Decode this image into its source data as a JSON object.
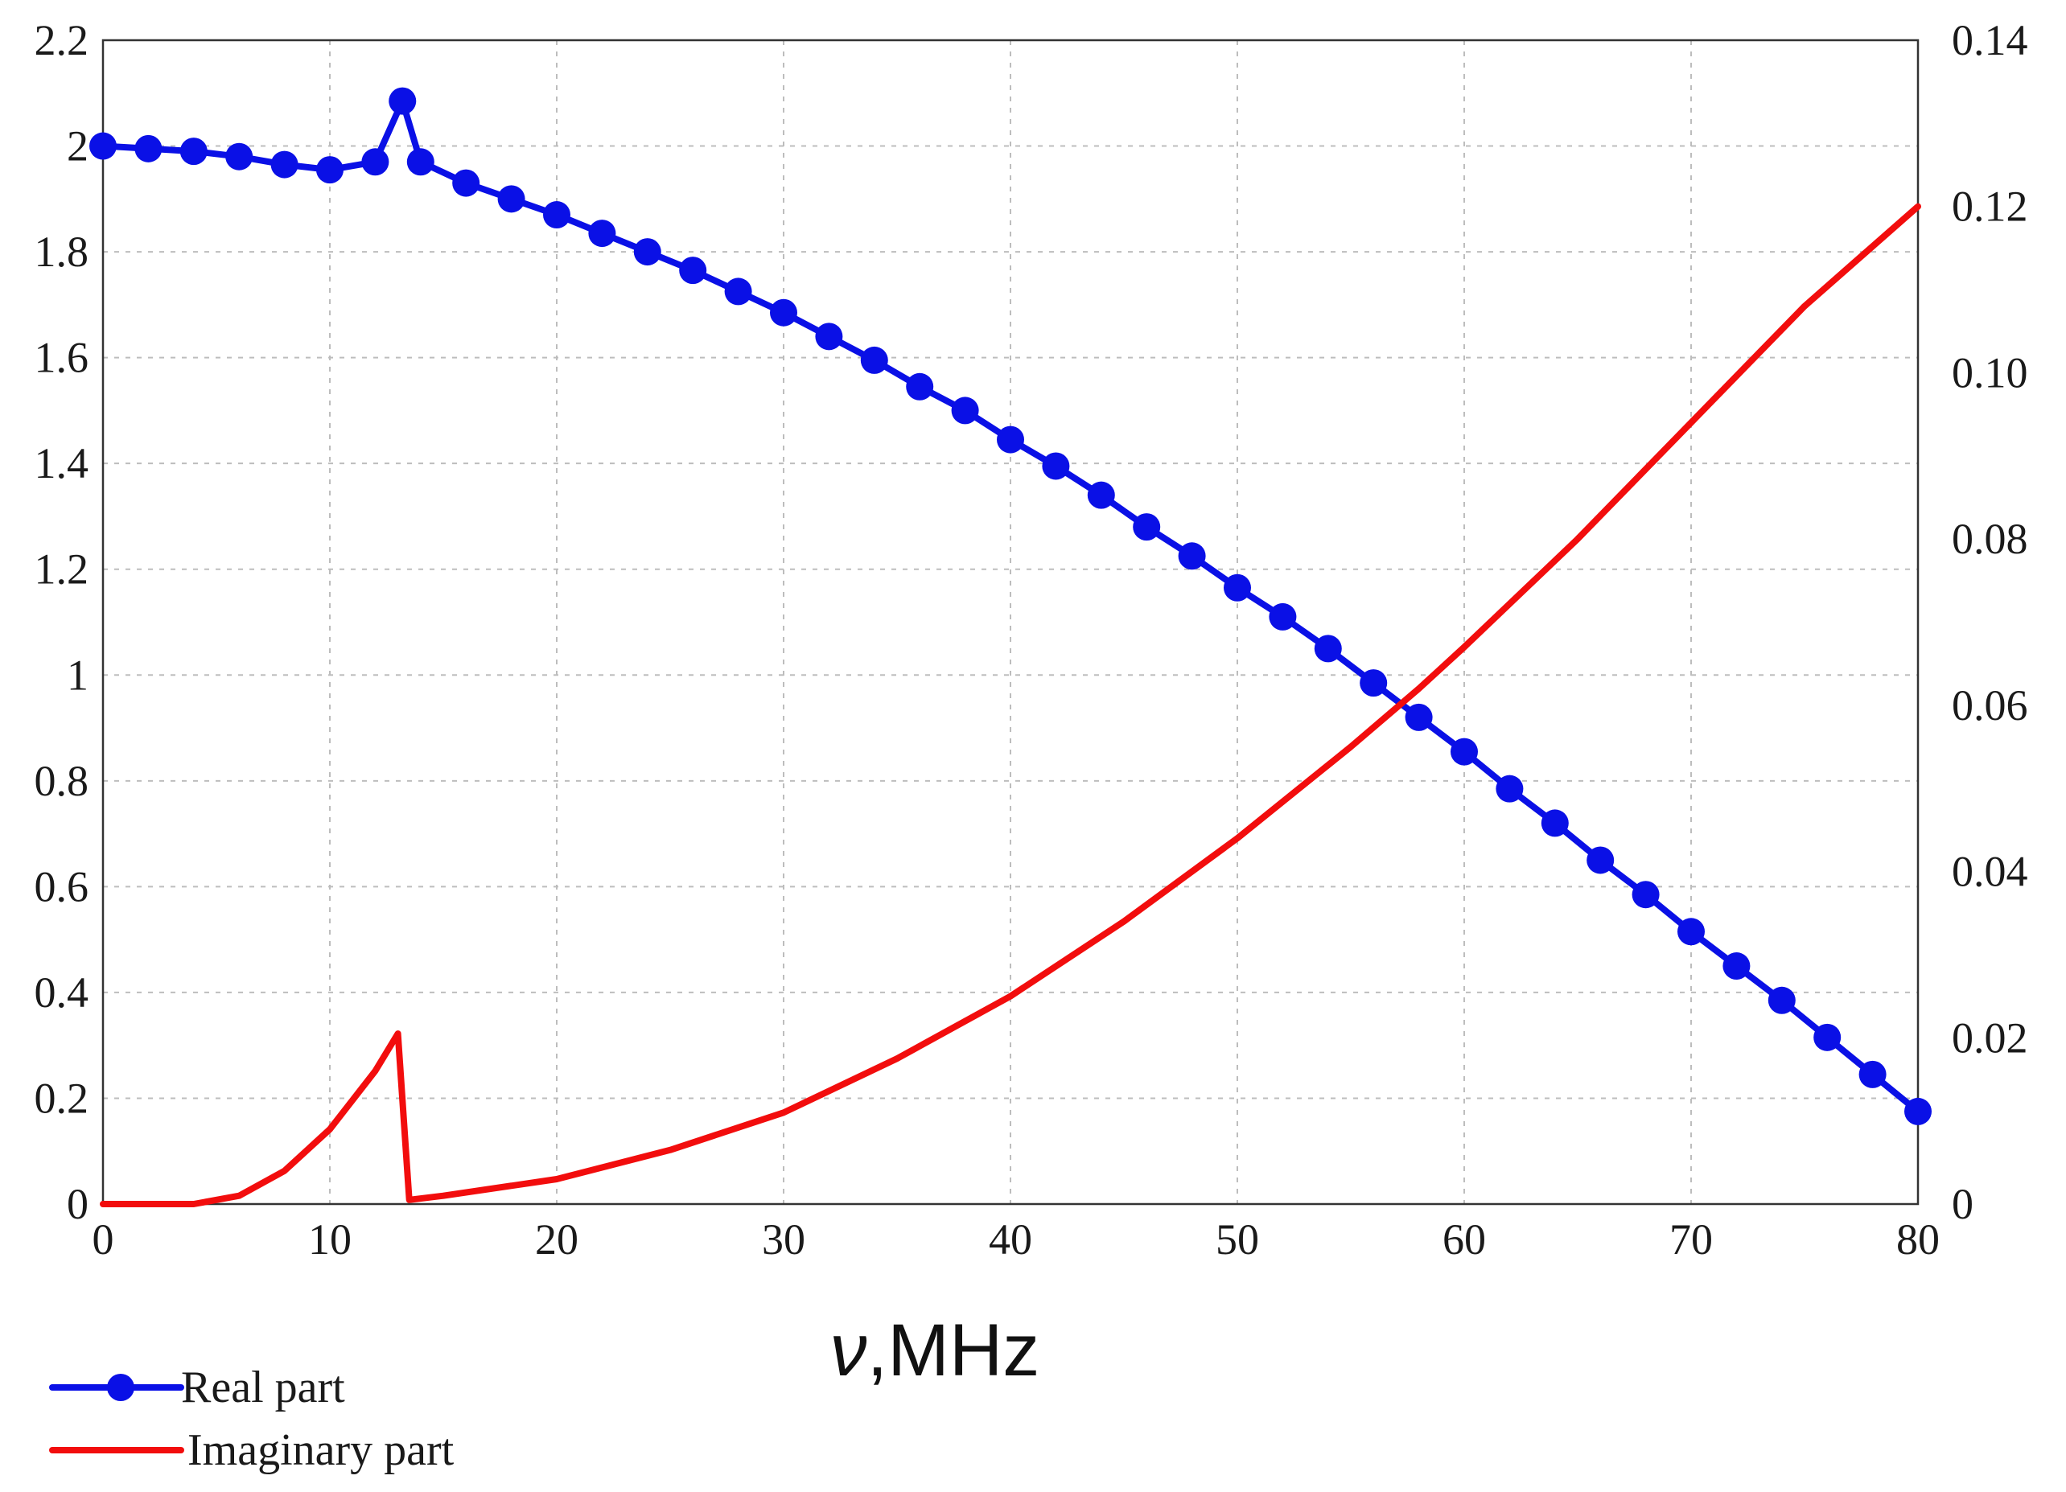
{
  "chart_data": {
    "type": "line",
    "xlabel_var": "ν",
    "xlabel_unit": ",MHz",
    "x_ticks": [
      "0",
      "10",
      "20",
      "30",
      "40",
      "50",
      "60",
      "70",
      "80"
    ],
    "y_left_ticks": [
      "0",
      "0.2",
      "0.4",
      "0.6",
      "0.8",
      "1",
      "1.2",
      "1.4",
      "1.6",
      "1.8",
      "2",
      "2.2"
    ],
    "y_right_ticks": [
      "0",
      "0.02",
      "0.04",
      "0.06",
      "0.08",
      "0.10",
      "0.12",
      "0.14"
    ],
    "xlim": [
      0,
      80
    ],
    "ylim_left": [
      0,
      2.2
    ],
    "ylim_right": [
      0,
      0.14
    ],
    "grid": true,
    "legend_position": "bottom-left",
    "series": [
      {
        "name": "Real part",
        "axis": "left",
        "color": "#0a10e6",
        "marker": "circle",
        "x": [
          0,
          2,
          4,
          6,
          8,
          10,
          12,
          13.2,
          14,
          16,
          18,
          20,
          22,
          24,
          26,
          28,
          30,
          32,
          34,
          36,
          38,
          40,
          42,
          44,
          46,
          48,
          50,
          52,
          54,
          56,
          58,
          60,
          62,
          64,
          66,
          68,
          70,
          72,
          74,
          76,
          78,
          80
        ],
        "y": [
          2.0,
          1.995,
          1.99,
          1.98,
          1.965,
          1.955,
          1.97,
          2.085,
          1.97,
          1.93,
          1.9,
          1.87,
          1.835,
          1.8,
          1.765,
          1.725,
          1.685,
          1.64,
          1.595,
          1.545,
          1.5,
          1.445,
          1.395,
          1.34,
          1.28,
          1.225,
          1.165,
          1.11,
          1.05,
          0.985,
          0.92,
          0.855,
          0.785,
          0.72,
          0.65,
          0.585,
          0.515,
          0.45,
          0.385,
          0.315,
          0.245,
          0.175
        ]
      },
      {
        "name": "Imaginary part",
        "axis": "right",
        "color": "#f20d0d",
        "marker": "none",
        "x": [
          0,
          2,
          4,
          6,
          8,
          10,
          11,
          12,
          13,
          13.5,
          15,
          20,
          25,
          30,
          35,
          40,
          45,
          50,
          55,
          58,
          60,
          65,
          70,
          75,
          80
        ],
        "y": [
          0.0,
          0.0,
          0.0,
          0.001,
          0.004,
          0.009,
          0.0125,
          0.016,
          0.0205,
          0.0005,
          0.001,
          0.003,
          0.0065,
          0.011,
          0.0175,
          0.025,
          0.034,
          0.044,
          0.055,
          0.062,
          0.067,
          0.08,
          0.094,
          0.108,
          0.12
        ]
      }
    ]
  }
}
